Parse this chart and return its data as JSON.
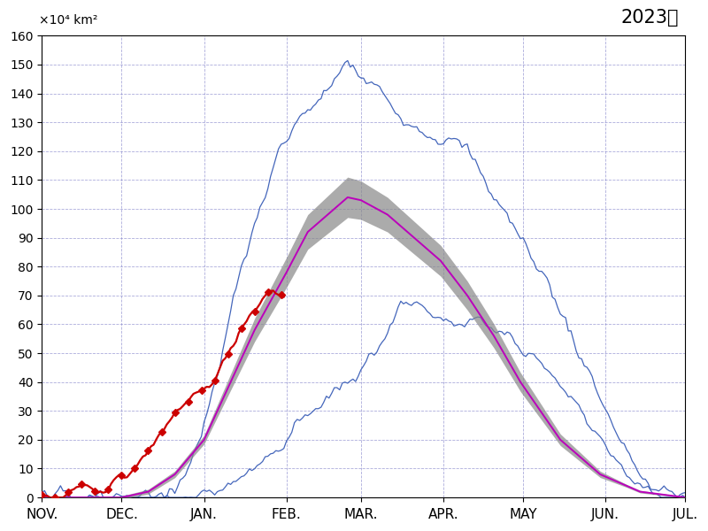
{
  "title": "2023年",
  "ylabel": "×10⁴ km²",
  "ylim": [
    0,
    160
  ],
  "yticks": [
    0,
    10,
    20,
    30,
    40,
    50,
    60,
    70,
    80,
    90,
    100,
    110,
    120,
    130,
    140,
    150,
    160
  ],
  "month_labels": [
    "NOV.",
    "DEC.",
    "JAN.",
    "FEB.",
    "MAR.",
    "APR.",
    "MAY",
    "JUN.",
    "JUL."
  ],
  "month_ticks": [
    0,
    30,
    61,
    92,
    120,
    151,
    181,
    212,
    242
  ],
  "background_color": "#ffffff",
  "grid_color": "#8888cc",
  "mean_color": "#bb00bb",
  "shade_color": "#888888",
  "line_color": "#4466bb",
  "current_color": "#cc0000",
  "n_days": 243
}
